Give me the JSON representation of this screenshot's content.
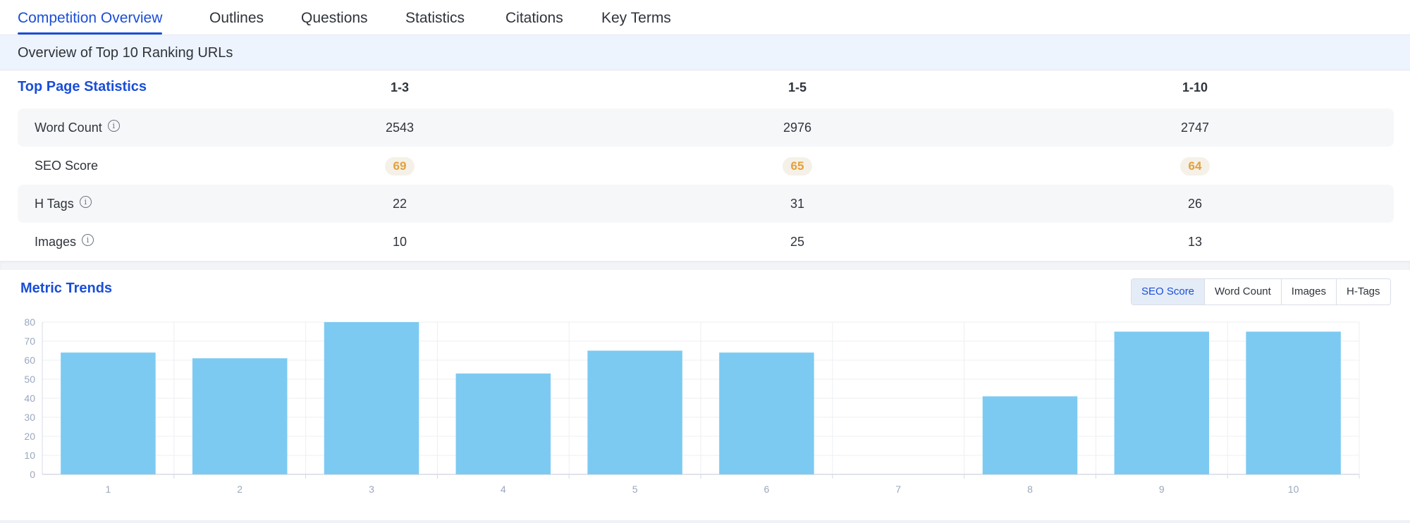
{
  "tabs": [
    {
      "label": "Competition Overview",
      "active": true
    },
    {
      "label": "Outlines",
      "active": false
    },
    {
      "label": "Questions",
      "active": false
    },
    {
      "label": "Statistics",
      "active": false
    },
    {
      "label": "Citations",
      "active": false
    },
    {
      "label": "Key Terms",
      "active": false
    }
  ],
  "overview": {
    "title": "Overview of Top 10 Ranking URLs"
  },
  "stats": {
    "title": "Top Page Statistics",
    "columns": [
      "1-3",
      "1-5",
      "1-10"
    ],
    "rows": [
      {
        "label": "Word Count",
        "info": true,
        "values": [
          "2543",
          "2976",
          "2747"
        ],
        "pill": false
      },
      {
        "label": "SEO Score",
        "info": false,
        "values": [
          "69",
          "65",
          "64"
        ],
        "pill": true
      },
      {
        "label": "H Tags",
        "info": true,
        "values": [
          "22",
          "31",
          "26"
        ],
        "pill": false
      },
      {
        "label": "Images",
        "info": true,
        "values": [
          "10",
          "25",
          "13"
        ],
        "pill": false
      }
    ]
  },
  "trends": {
    "title": "Metric Trends",
    "buttons": [
      {
        "label": "SEO Score",
        "active": true
      },
      {
        "label": "Word Count",
        "active": false
      },
      {
        "label": "Images",
        "active": false
      },
      {
        "label": "H-Tags",
        "active": false
      }
    ]
  },
  "colors": {
    "accent": "#1a4ed8",
    "bar": "#7ccaf2",
    "pill_text": "#e3a03c"
  },
  "chart_data": {
    "type": "bar",
    "categories": [
      "1",
      "2",
      "3",
      "4",
      "5",
      "6",
      "7",
      "8",
      "9",
      "10"
    ],
    "values": [
      64,
      61,
      80,
      53,
      65,
      64,
      0,
      41,
      75,
      75
    ],
    "ylim": [
      0,
      80
    ],
    "yticks": [
      0,
      10,
      20,
      30,
      40,
      50,
      60,
      70,
      80
    ],
    "grid": true,
    "title": "",
    "xlabel": "",
    "ylabel": ""
  }
}
